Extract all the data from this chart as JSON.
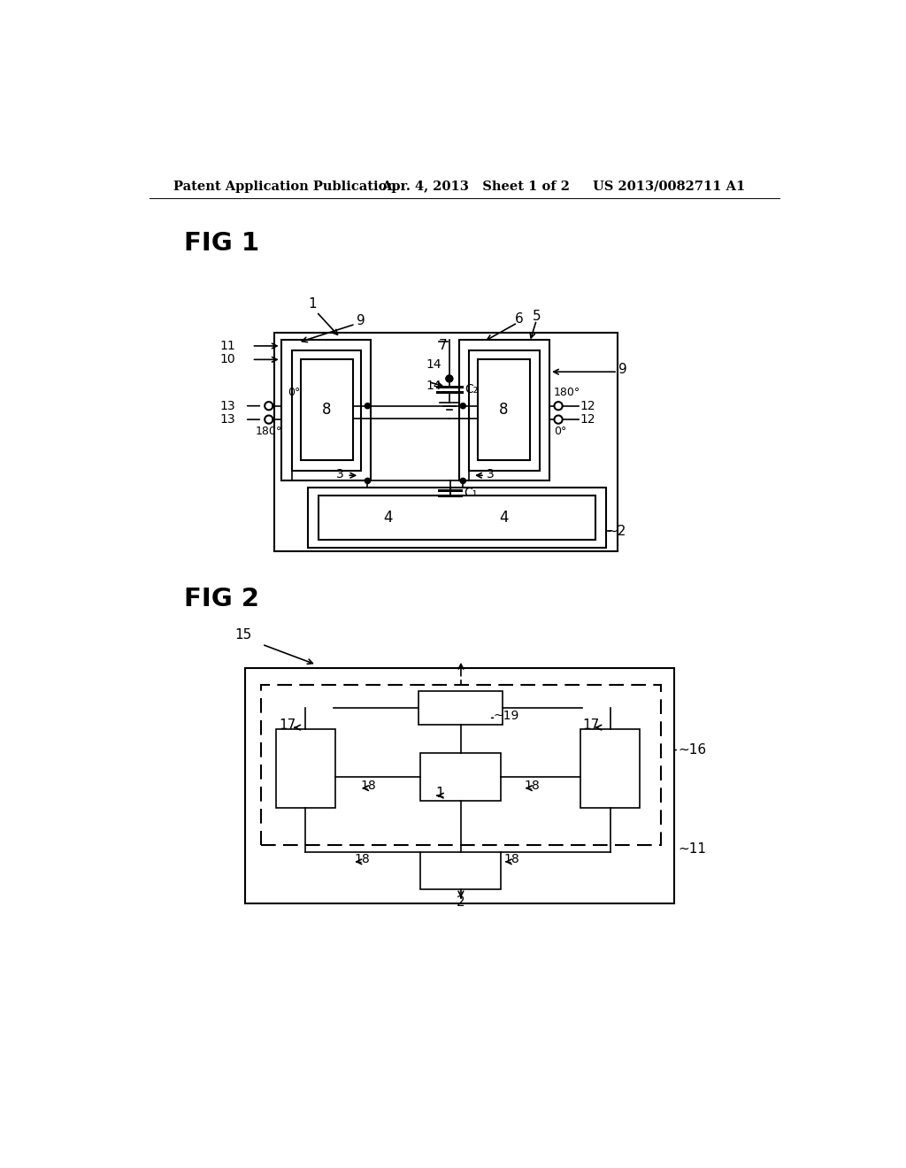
{
  "bg_color": "#ffffff",
  "header_text1": "Patent Application Publication",
  "header_text2": "Apr. 4, 2013   Sheet 1 of 2",
  "header_text3": "US 2013/0082711 A1",
  "fig1_label": "FIG 1",
  "fig2_label": "FIG 2",
  "font_color": "#000000"
}
